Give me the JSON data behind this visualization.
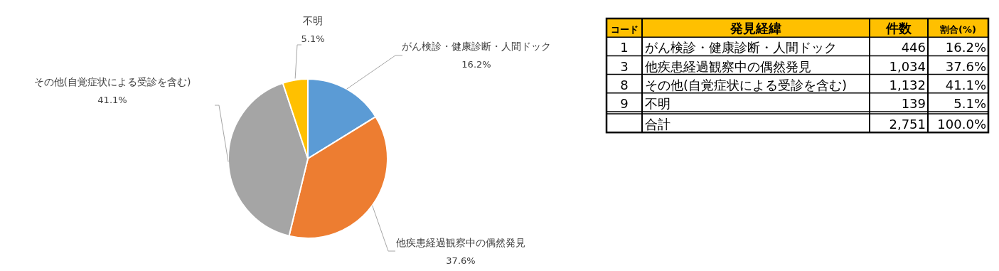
{
  "chart_data": [
    {
      "type": "pie",
      "categories": [
        "がん検診・健康診断・人間ドック",
        "他疾患経過観察中の偶然発見",
        "その他(自覚症状による受診を含む)",
        "不明"
      ],
      "values": [
        16.2,
        37.6,
        41.1,
        5.1
      ],
      "colors": [
        "#5b9bd5",
        "#ed7d31",
        "#a5a5a5",
        "#ffc000"
      ],
      "value_labels": [
        "16.2%",
        "37.6%",
        "41.1%",
        "5.1%"
      ]
    },
    {
      "type": "other",
      "categories": [
        "コード",
        "発見経緯",
        "件数",
        "割合(%)"
      ],
      "annotations": [
        "1",
        "がん検診・健康診断・人間ドック",
        "446",
        "16.2%",
        "3",
        "他疾患経過観察中の偶然発見",
        "1,034",
        "37.6%",
        "8",
        "その他(自覚症状による受診を含む)",
        "1,132",
        "41.1%",
        "9",
        "不明",
        "139",
        "5.1%",
        "合計",
        "2,751",
        "100.0%"
      ]
    }
  ]
}
